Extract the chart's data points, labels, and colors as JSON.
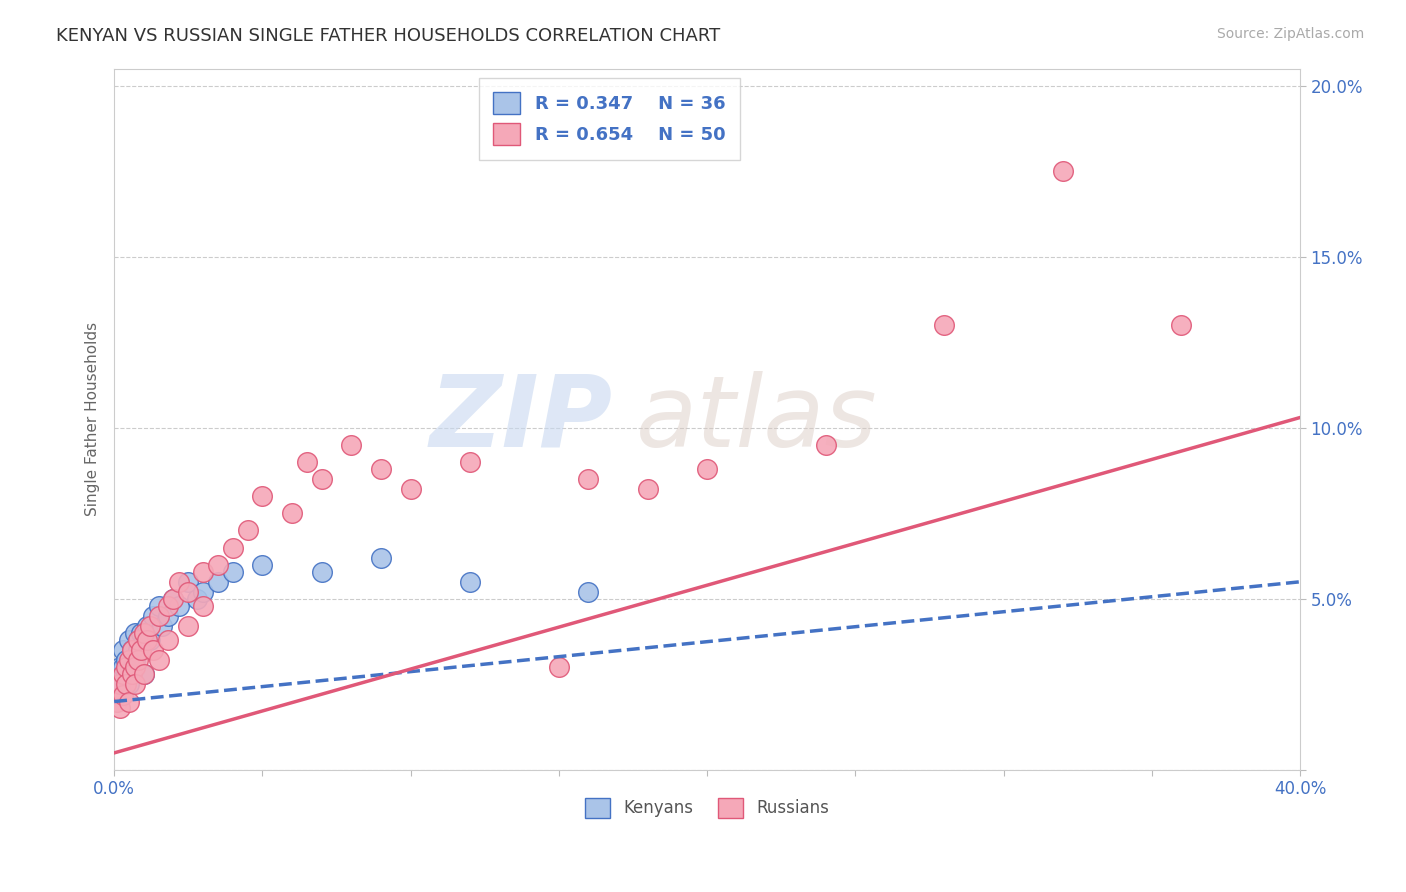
{
  "title": "KENYAN VS RUSSIAN SINGLE FATHER HOUSEHOLDS CORRELATION CHART",
  "source": "Source: ZipAtlas.com",
  "ylabel": "Single Father Households",
  "xlim": [
    0.0,
    0.4
  ],
  "ylim": [
    0.0,
    0.205
  ],
  "xticks": [
    0.0,
    0.05,
    0.1,
    0.15,
    0.2,
    0.25,
    0.3,
    0.35,
    0.4
  ],
  "yticks": [
    0.0,
    0.05,
    0.1,
    0.15,
    0.2
  ],
  "legend_r_kenyan": "R = 0.347",
  "legend_n_kenyan": "N = 36",
  "legend_r_russian": "R = 0.654",
  "legend_n_russian": "N = 50",
  "kenyan_color": "#aac4e8",
  "russian_color": "#f5a8b8",
  "kenyan_line_color": "#4472c4",
  "russian_line_color": "#e05878",
  "watermark_zip": "ZIP",
  "watermark_atlas": "atlas",
  "background_color": "#ffffff",
  "kenyan_scatter": [
    [
      0.001,
      0.028
    ],
    [
      0.002,
      0.03
    ],
    [
      0.002,
      0.025
    ],
    [
      0.003,
      0.035
    ],
    [
      0.003,
      0.03
    ],
    [
      0.004,
      0.028
    ],
    [
      0.004,
      0.032
    ],
    [
      0.005,
      0.038
    ],
    [
      0.005,
      0.025
    ],
    [
      0.006,
      0.03
    ],
    [
      0.006,
      0.035
    ],
    [
      0.007,
      0.04
    ],
    [
      0.007,
      0.032
    ],
    [
      0.008,
      0.038
    ],
    [
      0.008,
      0.035
    ],
    [
      0.009,
      0.04
    ],
    [
      0.01,
      0.038
    ],
    [
      0.01,
      0.028
    ],
    [
      0.011,
      0.042
    ],
    [
      0.012,
      0.038
    ],
    [
      0.013,
      0.045
    ],
    [
      0.015,
      0.048
    ],
    [
      0.016,
      0.042
    ],
    [
      0.018,
      0.045
    ],
    [
      0.02,
      0.05
    ],
    [
      0.022,
      0.048
    ],
    [
      0.025,
      0.055
    ],
    [
      0.028,
      0.05
    ],
    [
      0.03,
      0.052
    ],
    [
      0.035,
      0.055
    ],
    [
      0.04,
      0.058
    ],
    [
      0.05,
      0.06
    ],
    [
      0.07,
      0.058
    ],
    [
      0.09,
      0.062
    ],
    [
      0.12,
      0.055
    ],
    [
      0.16,
      0.052
    ]
  ],
  "russian_scatter": [
    [
      0.001,
      0.02
    ],
    [
      0.002,
      0.025
    ],
    [
      0.002,
      0.018
    ],
    [
      0.003,
      0.028
    ],
    [
      0.003,
      0.022
    ],
    [
      0.004,
      0.03
    ],
    [
      0.004,
      0.025
    ],
    [
      0.005,
      0.032
    ],
    [
      0.005,
      0.02
    ],
    [
      0.006,
      0.028
    ],
    [
      0.006,
      0.035
    ],
    [
      0.007,
      0.03
    ],
    [
      0.007,
      0.025
    ],
    [
      0.008,
      0.038
    ],
    [
      0.008,
      0.032
    ],
    [
      0.009,
      0.035
    ],
    [
      0.01,
      0.04
    ],
    [
      0.01,
      0.028
    ],
    [
      0.011,
      0.038
    ],
    [
      0.012,
      0.042
    ],
    [
      0.013,
      0.035
    ],
    [
      0.015,
      0.045
    ],
    [
      0.015,
      0.032
    ],
    [
      0.018,
      0.048
    ],
    [
      0.018,
      0.038
    ],
    [
      0.02,
      0.05
    ],
    [
      0.022,
      0.055
    ],
    [
      0.025,
      0.052
    ],
    [
      0.025,
      0.042
    ],
    [
      0.03,
      0.058
    ],
    [
      0.03,
      0.048
    ],
    [
      0.035,
      0.06
    ],
    [
      0.04,
      0.065
    ],
    [
      0.045,
      0.07
    ],
    [
      0.05,
      0.08
    ],
    [
      0.06,
      0.075
    ],
    [
      0.065,
      0.09
    ],
    [
      0.07,
      0.085
    ],
    [
      0.08,
      0.095
    ],
    [
      0.09,
      0.088
    ],
    [
      0.1,
      0.082
    ],
    [
      0.12,
      0.09
    ],
    [
      0.15,
      0.03
    ],
    [
      0.16,
      0.085
    ],
    [
      0.18,
      0.082
    ],
    [
      0.2,
      0.088
    ],
    [
      0.24,
      0.095
    ],
    [
      0.28,
      0.13
    ],
    [
      0.32,
      0.175
    ],
    [
      0.36,
      0.13
    ]
  ],
  "kenyan_line": [
    [
      0.0,
      0.02
    ],
    [
      0.4,
      0.055
    ]
  ],
  "russian_line": [
    [
      0.0,
      0.005
    ],
    [
      0.4,
      0.103
    ]
  ]
}
